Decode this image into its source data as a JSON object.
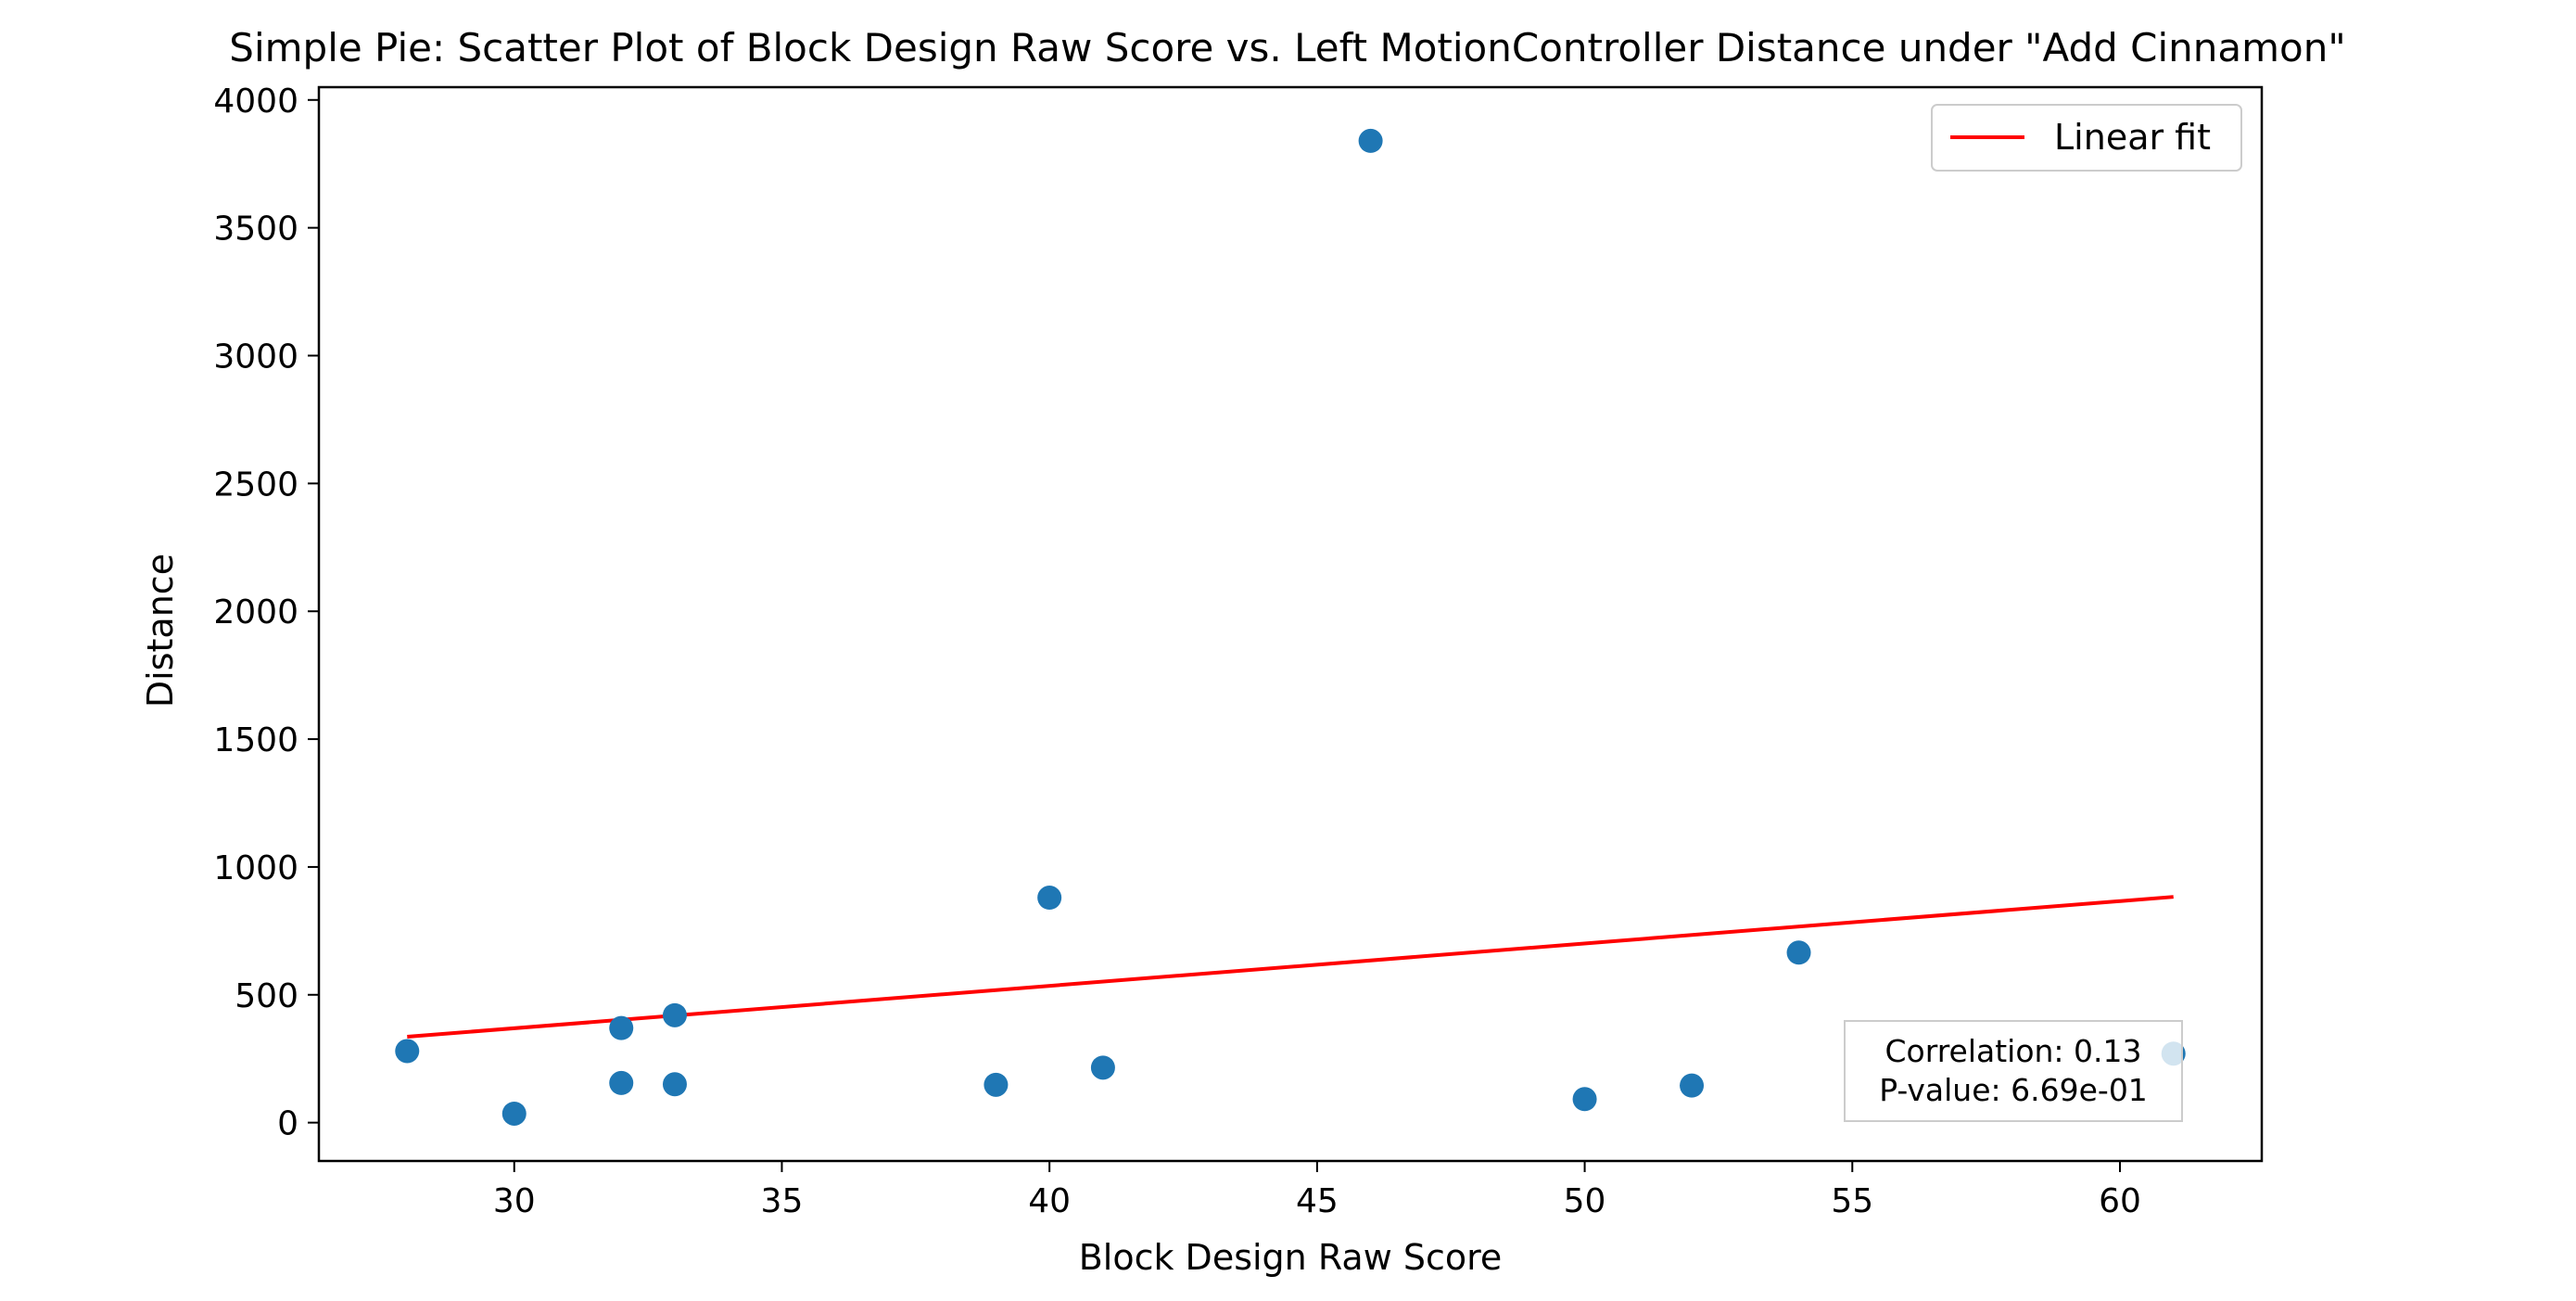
{
  "chart_data": {
    "type": "scatter",
    "title": "Simple Pie: Scatter Plot of Block Design Raw Score vs. Left MotionController Distance under \"Add Cinnamon\"",
    "xlabel": "Block Design Raw Score",
    "ylabel": "Distance",
    "xlim": [
      26.35,
      62.65
    ],
    "ylim": [
      -150,
      4050
    ],
    "xticks": [
      30,
      35,
      40,
      45,
      50,
      55,
      60
    ],
    "yticks": [
      0,
      500,
      1000,
      1500,
      2000,
      2500,
      3000,
      3500,
      4000
    ],
    "grid": false,
    "legend_position": "top-right",
    "series": [
      {
        "marker_color": "#1f77b4",
        "x": [
          28,
          30,
          32,
          32,
          33,
          33,
          39,
          40,
          41,
          46,
          50,
          52,
          54,
          61
        ],
        "y": [
          280,
          35,
          370,
          155,
          420,
          150,
          148,
          880,
          215,
          3840,
          92,
          145,
          665,
          270
        ]
      }
    ],
    "fit_line": {
      "name": "Linear fit",
      "color": "#ff0000",
      "x": [
        28,
        61
      ],
      "y": [
        336,
        883
      ]
    },
    "annotation": {
      "correlation": "Correlation: 0.13",
      "p_value": "P-value: 6.69e-01"
    }
  }
}
